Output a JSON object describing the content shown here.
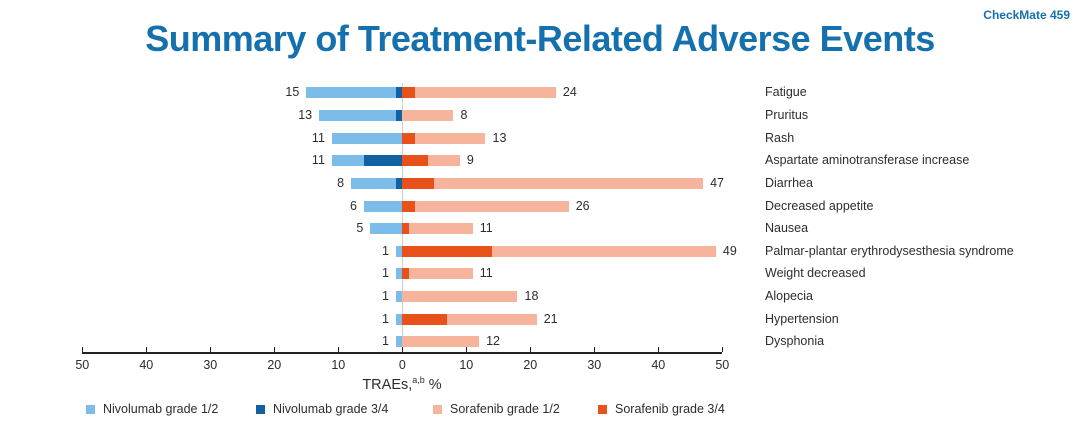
{
  "header": {
    "study_label": "CheckMate 459",
    "title": "Summary of Treatment-Related Adverse Events"
  },
  "colors": {
    "accent_blue": "#1571AD",
    "nivo_g12": "#7BBDE8",
    "nivo_g34": "#1161A3",
    "sora_g12": "#F6B49D",
    "sora_g34": "#E8521A",
    "axis": "#222222",
    "text": "#2D2D2D",
    "zero_line": "#CFCFCF"
  },
  "chart_data": {
    "type": "bar",
    "variant": "diverging-stacked-horizontal",
    "title": "Summary of Treatment-Related Adverse Events",
    "xlabel_main": "TRAEs,",
    "xlabel_sup": "a,b",
    "xlabel_unit": "%",
    "xlim": [
      -50,
      50
    ],
    "x_ticks": [
      50,
      40,
      30,
      20,
      10,
      0,
      10,
      20,
      30,
      40,
      50
    ],
    "legend_position": "bottom",
    "left_side_series": "Nivolumab",
    "right_side_series": "Sorafenib",
    "legend": [
      {
        "label": "Nivolumab grade 1/2",
        "color_key": "nivo_g12"
      },
      {
        "label": "Nivolumab grade 3/4",
        "color_key": "nivo_g34"
      },
      {
        "label": "Sorafenib grade 1/2",
        "color_key": "sora_g12"
      },
      {
        "label": "Sorafenib grade 3/4",
        "color_key": "sora_g34"
      }
    ],
    "rows": [
      {
        "event": "Fatigue",
        "nivolumab_total": 15,
        "nivolumab_grade34": 1,
        "sorafenib_total": 24,
        "sorafenib_grade34": 2
      },
      {
        "event": "Pruritus",
        "nivolumab_total": 13,
        "nivolumab_grade34": 1,
        "sorafenib_total": 8,
        "sorafenib_grade34": 0
      },
      {
        "event": "Rash",
        "nivolumab_total": 11,
        "nivolumab_grade34": 0,
        "sorafenib_total": 13,
        "sorafenib_grade34": 2
      },
      {
        "event": "Aspartate aminotransferase increase",
        "nivolumab_total": 11,
        "nivolumab_grade34": 6,
        "sorafenib_total": 9,
        "sorafenib_grade34": 4
      },
      {
        "event": "Diarrhea",
        "nivolumab_total": 8,
        "nivolumab_grade34": 1,
        "sorafenib_total": 47,
        "sorafenib_grade34": 5
      },
      {
        "event": "Decreased appetite",
        "nivolumab_total": 6,
        "nivolumab_grade34": 0,
        "sorafenib_total": 26,
        "sorafenib_grade34": 2
      },
      {
        "event": "Nausea",
        "nivolumab_total": 5,
        "nivolumab_grade34": 0,
        "sorafenib_total": 11,
        "sorafenib_grade34": 1
      },
      {
        "event": "Palmar-plantar erythrodysesthesia syndrome",
        "nivolumab_total": 1,
        "nivolumab_grade34": 0,
        "sorafenib_total": 49,
        "sorafenib_grade34": 14
      },
      {
        "event": "Weight decreased",
        "nivolumab_total": 1,
        "nivolumab_grade34": 0,
        "sorafenib_total": 11,
        "sorafenib_grade34": 1
      },
      {
        "event": "Alopecia",
        "nivolumab_total": 1,
        "nivolumab_grade34": 0,
        "sorafenib_total": 18,
        "sorafenib_grade34": 0
      },
      {
        "event": "Hypertension",
        "nivolumab_total": 1,
        "nivolumab_grade34": 0,
        "sorafenib_total": 21,
        "sorafenib_grade34": 7
      },
      {
        "event": "Dysphonia",
        "nivolumab_total": 1,
        "nivolumab_grade34": 0,
        "sorafenib_total": 12,
        "sorafenib_grade34": 0
      }
    ]
  }
}
